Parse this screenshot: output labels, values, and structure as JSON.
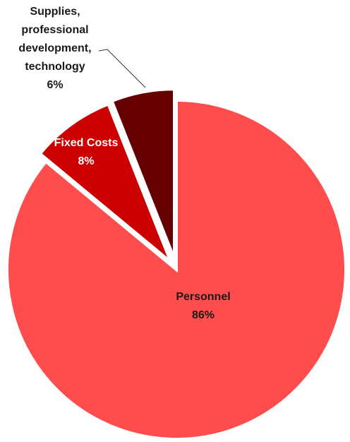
{
  "chart_data": {
    "type": "pie",
    "categories": [
      "Personnel",
      "Fixed Costs",
      "Supplies, professional development, technology"
    ],
    "values": [
      86,
      8,
      6
    ],
    "value_labels": [
      "86%",
      "8%",
      "6%"
    ],
    "colors": [
      "#ff4d4d",
      "#cc0000",
      "#660000"
    ]
  }
}
